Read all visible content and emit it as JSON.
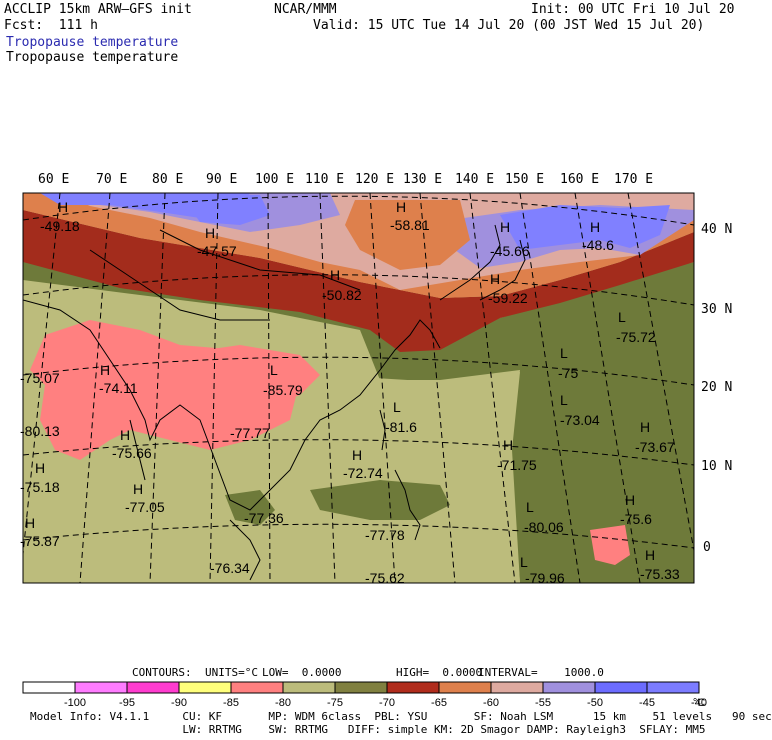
{
  "header": {
    "model": "ACCLIP 15km ARW–GFS init",
    "center": "NCAR/MMM",
    "init": "Init: 00 UTC Fri 10 Jul 20",
    "fcst": "Fcst:  111 h",
    "valid": "Valid: 15 UTC Tue 14 Jul 20 (00 JST Wed 15 Jul 20)",
    "field_1": "Tropopause temperature",
    "field_2": "Tropopause temperature"
  },
  "lon_labels": [
    "60 E",
    "70 E",
    "80 E",
    "90 E",
    "100 E",
    "110 E",
    "120 E",
    "130 E",
    "140 E",
    "150 E",
    "160 E",
    "170 E"
  ],
  "lat_labels": [
    "40 N",
    "30 N",
    "20 N",
    "10 N",
    "0"
  ],
  "centers": [
    {
      "type": "H",
      "value": "-49.18"
    },
    {
      "type": "H",
      "value": "-47.57"
    },
    {
      "type": "H",
      "value": "-58.81"
    },
    {
      "type": "H",
      "value": "-45.66"
    },
    {
      "type": "H",
      "value": "-48.6"
    },
    {
      "type": "H",
      "value": "-50.82"
    },
    {
      "type": "H",
      "value": "-59.22"
    },
    {
      "type": "L",
      "value": "-75.72"
    },
    {
      "type": "H",
      "value": "-74.11"
    },
    {
      "type": "L",
      "value": "-85.79"
    },
    {
      "type": "L",
      "value": "-75"
    },
    {
      "type": "L",
      "value": "-81.6"
    },
    {
      "type": "L",
      "value": "-73.04"
    },
    {
      "type": "H",
      "value": "-73.67"
    },
    {
      "type": "H",
      "value": "-75.66"
    },
    {
      "type": "L",
      "value": "-77.77"
    },
    {
      "type": "H",
      "value": "-72.74"
    },
    {
      "type": "H",
      "value": "-71.75"
    },
    {
      "type": "H",
      "value": "-77.05"
    },
    {
      "type": "H",
      "value": "-77.36"
    },
    {
      "type": "H",
      "value": "-75.18"
    },
    {
      "type": "H",
      "value": "-75.87"
    },
    {
      "type": "H",
      "value": "-80.13"
    },
    {
      "type": "H",
      "value": "-75.07"
    },
    {
      "type": "L",
      "value": "-80.06"
    },
    {
      "type": "H",
      "value": "-75.6"
    },
    {
      "type": "H",
      "value": "-75.33"
    },
    {
      "type": "L",
      "value": "-79.96"
    },
    {
      "type": "H",
      "value": "-75.62"
    },
    {
      "type": "L",
      "value": "-76.34"
    },
    {
      "type": "H",
      "value": "-77.78"
    }
  ],
  "contours_line": {
    "label": "CONTOURS:",
    "units": "UNITS=°C",
    "low": "LOW=  0.0000",
    "high": "HIGH=  0.0000",
    "interval": "INTERVAL=    1000.0"
  },
  "colorbar": {
    "colors": [
      "#ffffff",
      "#ff7cff",
      "#ff3ccf",
      "#ffff7c",
      "#ff8080",
      "#bcbc7c",
      "#808040",
      "#b02c1c",
      "#de804c",
      "#deaaa0",
      "#a090de",
      "#6c6cff",
      "#7c7cff"
    ],
    "labels": [
      "-100",
      "-95",
      "-90",
      "-85",
      "-80",
      "-75",
      "-70",
      "-65",
      "-60",
      "-55",
      "-50",
      "-45",
      "-40"
    ],
    "unit": "°C"
  },
  "footer": {
    "line1": "Model Info: V4.1.1     CU: KF       MP: WDM 6class  PBL: YSU       SF: Noah LSM      15 km    51 levels   90 sec",
    "line2": "                       LW: RRTMG    SW: RRTMG   DIFF: simple KM: 2D Smagor DAMP: Rayleigh3  SFLAY: MM5"
  },
  "colors": {
    "coldest": "#ff8080",
    "cold": "#bcbc7c",
    "olive": "#6e7a3a",
    "red": "#a32c1c",
    "orange": "#de804c",
    "pink": "#deaaa0",
    "purple": "#a090de",
    "blue": "#8080ff"
  }
}
